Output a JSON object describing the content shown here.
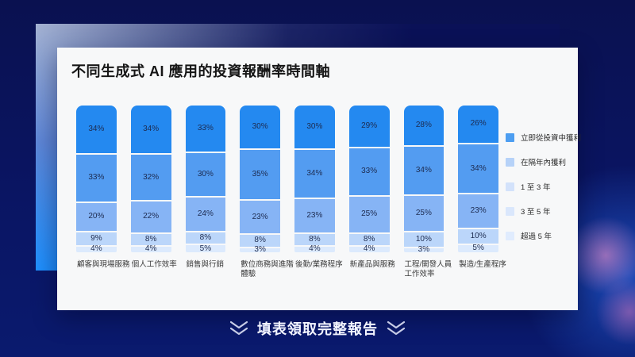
{
  "page": {
    "cta": "填表領取完整報告"
  },
  "chart_data": {
    "type": "bar",
    "stacked": true,
    "title": "不同生成式 AI 應用的投資報酬率時間軸",
    "categories": [
      "顧客與現場服務",
      "個人工作效率",
      "銷售與行銷",
      "數位商務與進階體驗",
      "後勤/業務程序",
      "新產品與服務",
      "工程/開發人員工作效率",
      "製造/生產程序"
    ],
    "series": [
      {
        "name": "立即從投資中獲利",
        "color": "#2489F0",
        "values": [
          34,
          34,
          33,
          30,
          30,
          29,
          28,
          26
        ]
      },
      {
        "name": "在隔年內獲利",
        "color": "#539CF1",
        "values": [
          33,
          32,
          30,
          35,
          34,
          33,
          34,
          34
        ]
      },
      {
        "name": "1 至 3 年",
        "color": "#86B4F5",
        "values": [
          20,
          22,
          24,
          23,
          23,
          25,
          25,
          23
        ]
      },
      {
        "name": "3 至 5 年",
        "color": "#BBD6FA",
        "values": [
          9,
          8,
          8,
          8,
          8,
          8,
          10,
          10
        ]
      },
      {
        "name": "超過 5 年",
        "color": "#DCEAFD",
        "values": [
          4,
          4,
          5,
          3,
          4,
          4,
          3,
          5
        ]
      }
    ],
    "legend_swatch_colors": [
      "#4D9EF1",
      "#B6D2F8",
      "#D3E2FB",
      "#DAE7FC",
      "#E0ECFE"
    ],
    "legend_position": "right",
    "value_suffix": "%",
    "xlabel": "",
    "ylabel": "",
    "grid": false,
    "accent_colors": {
      "background_navy": "#0A1563",
      "frame_light": "#A4B2D2",
      "frame_bright_blue": "#1E90FF",
      "card_background": "#F7F8F9",
      "glow_pink": "#EC8EC8"
    }
  }
}
